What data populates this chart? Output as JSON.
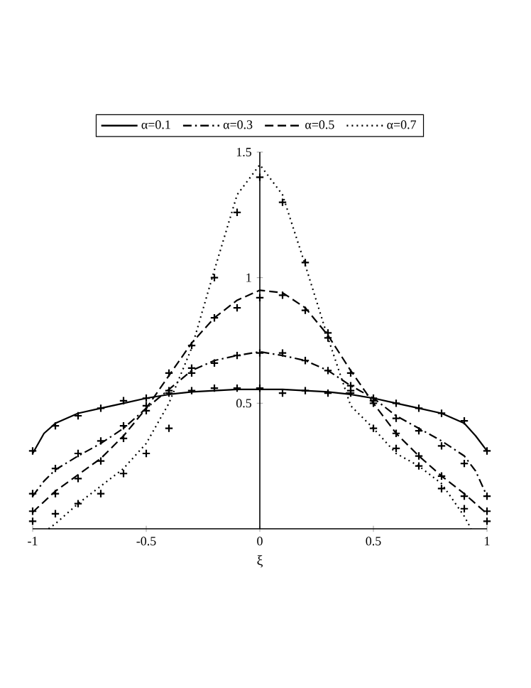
{
  "chart_data": {
    "type": "line",
    "xlabel": "ξ",
    "xlim": [
      -1,
      1
    ],
    "ylim": [
      0,
      1.5
    ],
    "xticks": [
      -1,
      -0.5,
      0,
      0.5,
      1
    ],
    "yticks": [
      {
        "value": 0,
        "label": null
      },
      0.5,
      1,
      1.5
    ],
    "legend": "top",
    "grid": false,
    "series": [
      {
        "name": "α=0.1",
        "line_style": "solid",
        "marker": "none",
        "color": "#000000",
        "x": [
          -1,
          -0.95,
          -0.9,
          -0.8,
          -0.7,
          -0.6,
          -0.5,
          -0.4,
          -0.3,
          -0.2,
          -0.1,
          0,
          0.1,
          0.2,
          0.3,
          0.4,
          0.5,
          0.6,
          0.7,
          0.8,
          0.9,
          0.95,
          1
        ],
        "values": [
          0.3,
          0.38,
          0.42,
          0.46,
          0.48,
          0.5,
          0.52,
          0.535,
          0.545,
          0.55,
          0.555,
          0.555,
          0.555,
          0.55,
          0.545,
          0.535,
          0.52,
          0.5,
          0.48,
          0.46,
          0.42,
          0.37,
          0.31
        ]
      },
      {
        "name": "α=0.3",
        "line_style": "dashdot",
        "marker": "none",
        "color": "#000000",
        "x": [
          -1,
          -0.95,
          -0.9,
          -0.8,
          -0.7,
          -0.6,
          -0.5,
          -0.4,
          -0.3,
          -0.2,
          -0.1,
          0,
          0.1,
          0.2,
          0.3,
          0.4,
          0.5,
          0.6,
          0.7,
          0.8,
          0.9,
          0.95,
          1
        ],
        "values": [
          0.13,
          0.19,
          0.235,
          0.29,
          0.34,
          0.4,
          0.48,
          0.555,
          0.63,
          0.67,
          0.69,
          0.705,
          0.69,
          0.67,
          0.63,
          0.57,
          0.52,
          0.45,
          0.4,
          0.35,
          0.29,
          0.23,
          0.13
        ]
      },
      {
        "name": "α=0.5",
        "line_style": "dashed",
        "marker": "none",
        "color": "#000000",
        "x": [
          -1,
          -0.9,
          -0.8,
          -0.7,
          -0.6,
          -0.5,
          -0.4,
          -0.3,
          -0.2,
          -0.1,
          0,
          0.1,
          0.2,
          0.3,
          0.4,
          0.5,
          0.6,
          0.7,
          0.8,
          0.9,
          1
        ],
        "values": [
          0.066,
          0.15,
          0.215,
          0.28,
          0.37,
          0.48,
          0.61,
          0.74,
          0.84,
          0.91,
          0.95,
          0.94,
          0.88,
          0.77,
          0.63,
          0.5,
          0.38,
          0.29,
          0.21,
          0.14,
          0.06
        ]
      },
      {
        "name": "α=0.7",
        "line_style": "dotted",
        "marker": "none",
        "color": "#000000",
        "x": [
          -0.93,
          -0.9,
          -0.8,
          -0.7,
          -0.6,
          -0.5,
          -0.4,
          -0.3,
          -0.2,
          -0.1,
          0,
          0.1,
          0.2,
          0.3,
          0.4,
          0.5,
          0.6,
          0.7,
          0.8,
          0.9,
          0.93
        ],
        "values": [
          0,
          0.02,
          0.1,
          0.17,
          0.24,
          0.34,
          0.5,
          0.72,
          1.03,
          1.33,
          1.45,
          1.33,
          1.05,
          0.76,
          0.49,
          0.4,
          0.3,
          0.25,
          0.18,
          0.05,
          0
        ]
      },
      {
        "type": "scatter",
        "marker": "cross",
        "color": "#000000",
        "x": [
          -1,
          -0.9,
          -0.8,
          -0.7,
          -0.6,
          -0.5,
          -0.4,
          -0.3,
          -0.2,
          -0.1,
          0,
          0.1,
          0.2,
          0.3,
          0.4,
          0.5,
          0.6,
          0.7,
          0.8,
          0.9,
          1
        ],
        "values": [
          0.31,
          0.41,
          0.45,
          0.48,
          0.51,
          0.52,
          0.54,
          0.55,
          0.56,
          0.56,
          0.56,
          0.54,
          0.55,
          0.54,
          0.54,
          0.52,
          0.5,
          0.48,
          0.46,
          0.43,
          0.31
        ]
      },
      {
        "type": "scatter",
        "marker": "cross",
        "color": "#000000",
        "x": [
          -1,
          -0.9,
          -0.8,
          -0.7,
          -0.6,
          -0.5,
          -0.4,
          -0.3,
          -0.2,
          -0.1,
          0,
          0.1,
          0.2,
          0.3,
          0.4,
          0.5,
          0.6,
          0.7,
          0.8,
          0.9,
          1
        ],
        "values": [
          0.14,
          0.24,
          0.3,
          0.35,
          0.41,
          0.49,
          0.55,
          0.62,
          0.66,
          0.69,
          0.7,
          0.7,
          0.67,
          0.63,
          0.57,
          0.51,
          0.44,
          0.39,
          0.33,
          0.26,
          0.13
        ]
      },
      {
        "type": "scatter",
        "marker": "cross",
        "color": "#000000",
        "x": [
          -1,
          -0.9,
          -0.8,
          -0.7,
          -0.6,
          -0.5,
          -0.4,
          -0.3,
          -0.2,
          -0.1,
          0,
          0.1,
          0.2,
          0.3,
          0.4,
          0.5,
          0.6,
          0.7,
          0.8,
          0.9,
          1
        ],
        "values": [
          0.07,
          0.14,
          0.2,
          0.27,
          0.36,
          0.47,
          0.62,
          0.73,
          0.84,
          0.88,
          0.92,
          0.93,
          0.87,
          0.76,
          0.62,
          0.5,
          0.38,
          0.29,
          0.21,
          0.13,
          0.07
        ]
      },
      {
        "type": "scatter",
        "marker": "cross",
        "color": "#000000",
        "x": [
          -1,
          -0.9,
          -0.8,
          -0.7,
          -0.6,
          -0.5,
          -0.4,
          -0.3,
          -0.2,
          -0.1,
          0,
          0.1,
          0.2,
          0.3,
          0.4,
          0.5,
          0.6,
          0.7,
          0.8,
          0.9,
          1
        ],
        "values": [
          0.03,
          0.06,
          0.1,
          0.14,
          0.22,
          0.3,
          0.4,
          0.64,
          1.0,
          1.26,
          1.4,
          1.3,
          1.06,
          0.78,
          0.55,
          0.4,
          0.32,
          0.25,
          0.16,
          0.08,
          0.03
        ]
      }
    ]
  }
}
